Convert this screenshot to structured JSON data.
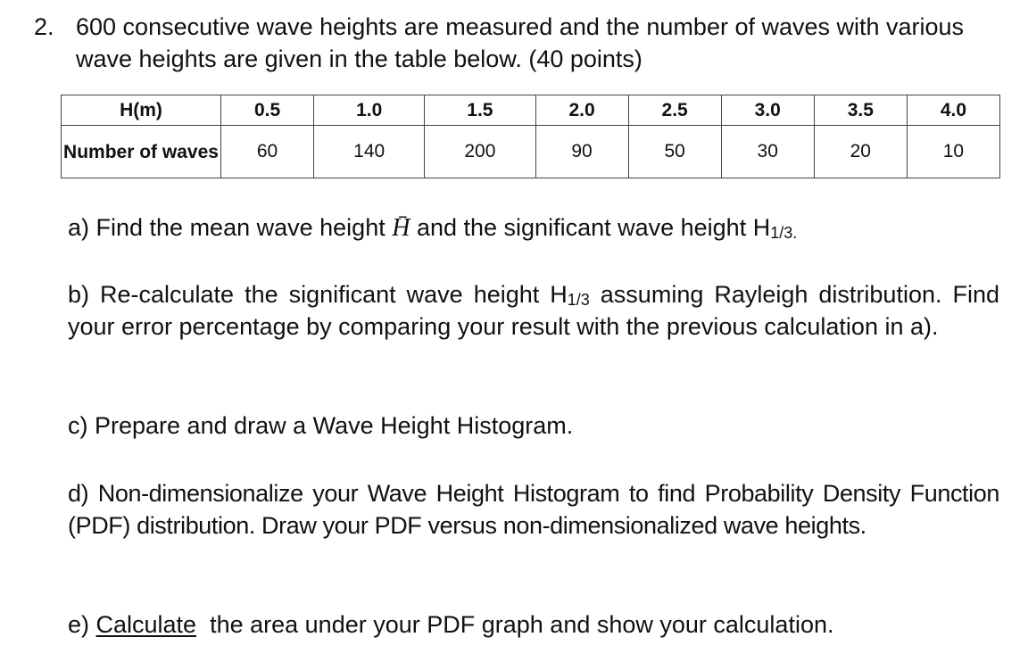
{
  "question": {
    "number": "2.",
    "text": "600 consecutive wave heights are measured and the number of waves with various wave heights are given in the table below. (40 points)"
  },
  "table": {
    "header": [
      "H(m)",
      "0.5",
      "1.0",
      "1.5",
      "2.0",
      "2.5",
      "3.0",
      "3.5",
      "4.0"
    ],
    "rows": [
      [
        "Number of waves",
        "60",
        "140",
        "200",
        "90",
        "50",
        "30",
        "20",
        "10"
      ]
    ]
  },
  "parts": {
    "a": [
      "a) Find the mean wave height ",
      "H̄",
      " and the significant wave height H",
      "1/3."
    ],
    "b": [
      "b) Re-calculate the significant wave height H",
      "1/3",
      " assuming Rayleigh distribution.  Find your error percentage by comparing your result with the previous calculation in a)."
    ],
    "c": "c) Prepare and draw a Wave Height Histogram.",
    "d": "d) Non-dimensionalize your Wave Height Histogram to find Probability Density Function (PDF) distribution. Draw your PDF versus non-dimensionalized wave heights.",
    "e": [
      "e) ",
      "Calculate",
      "  the area under your PDF graph and show your calculation."
    ]
  }
}
